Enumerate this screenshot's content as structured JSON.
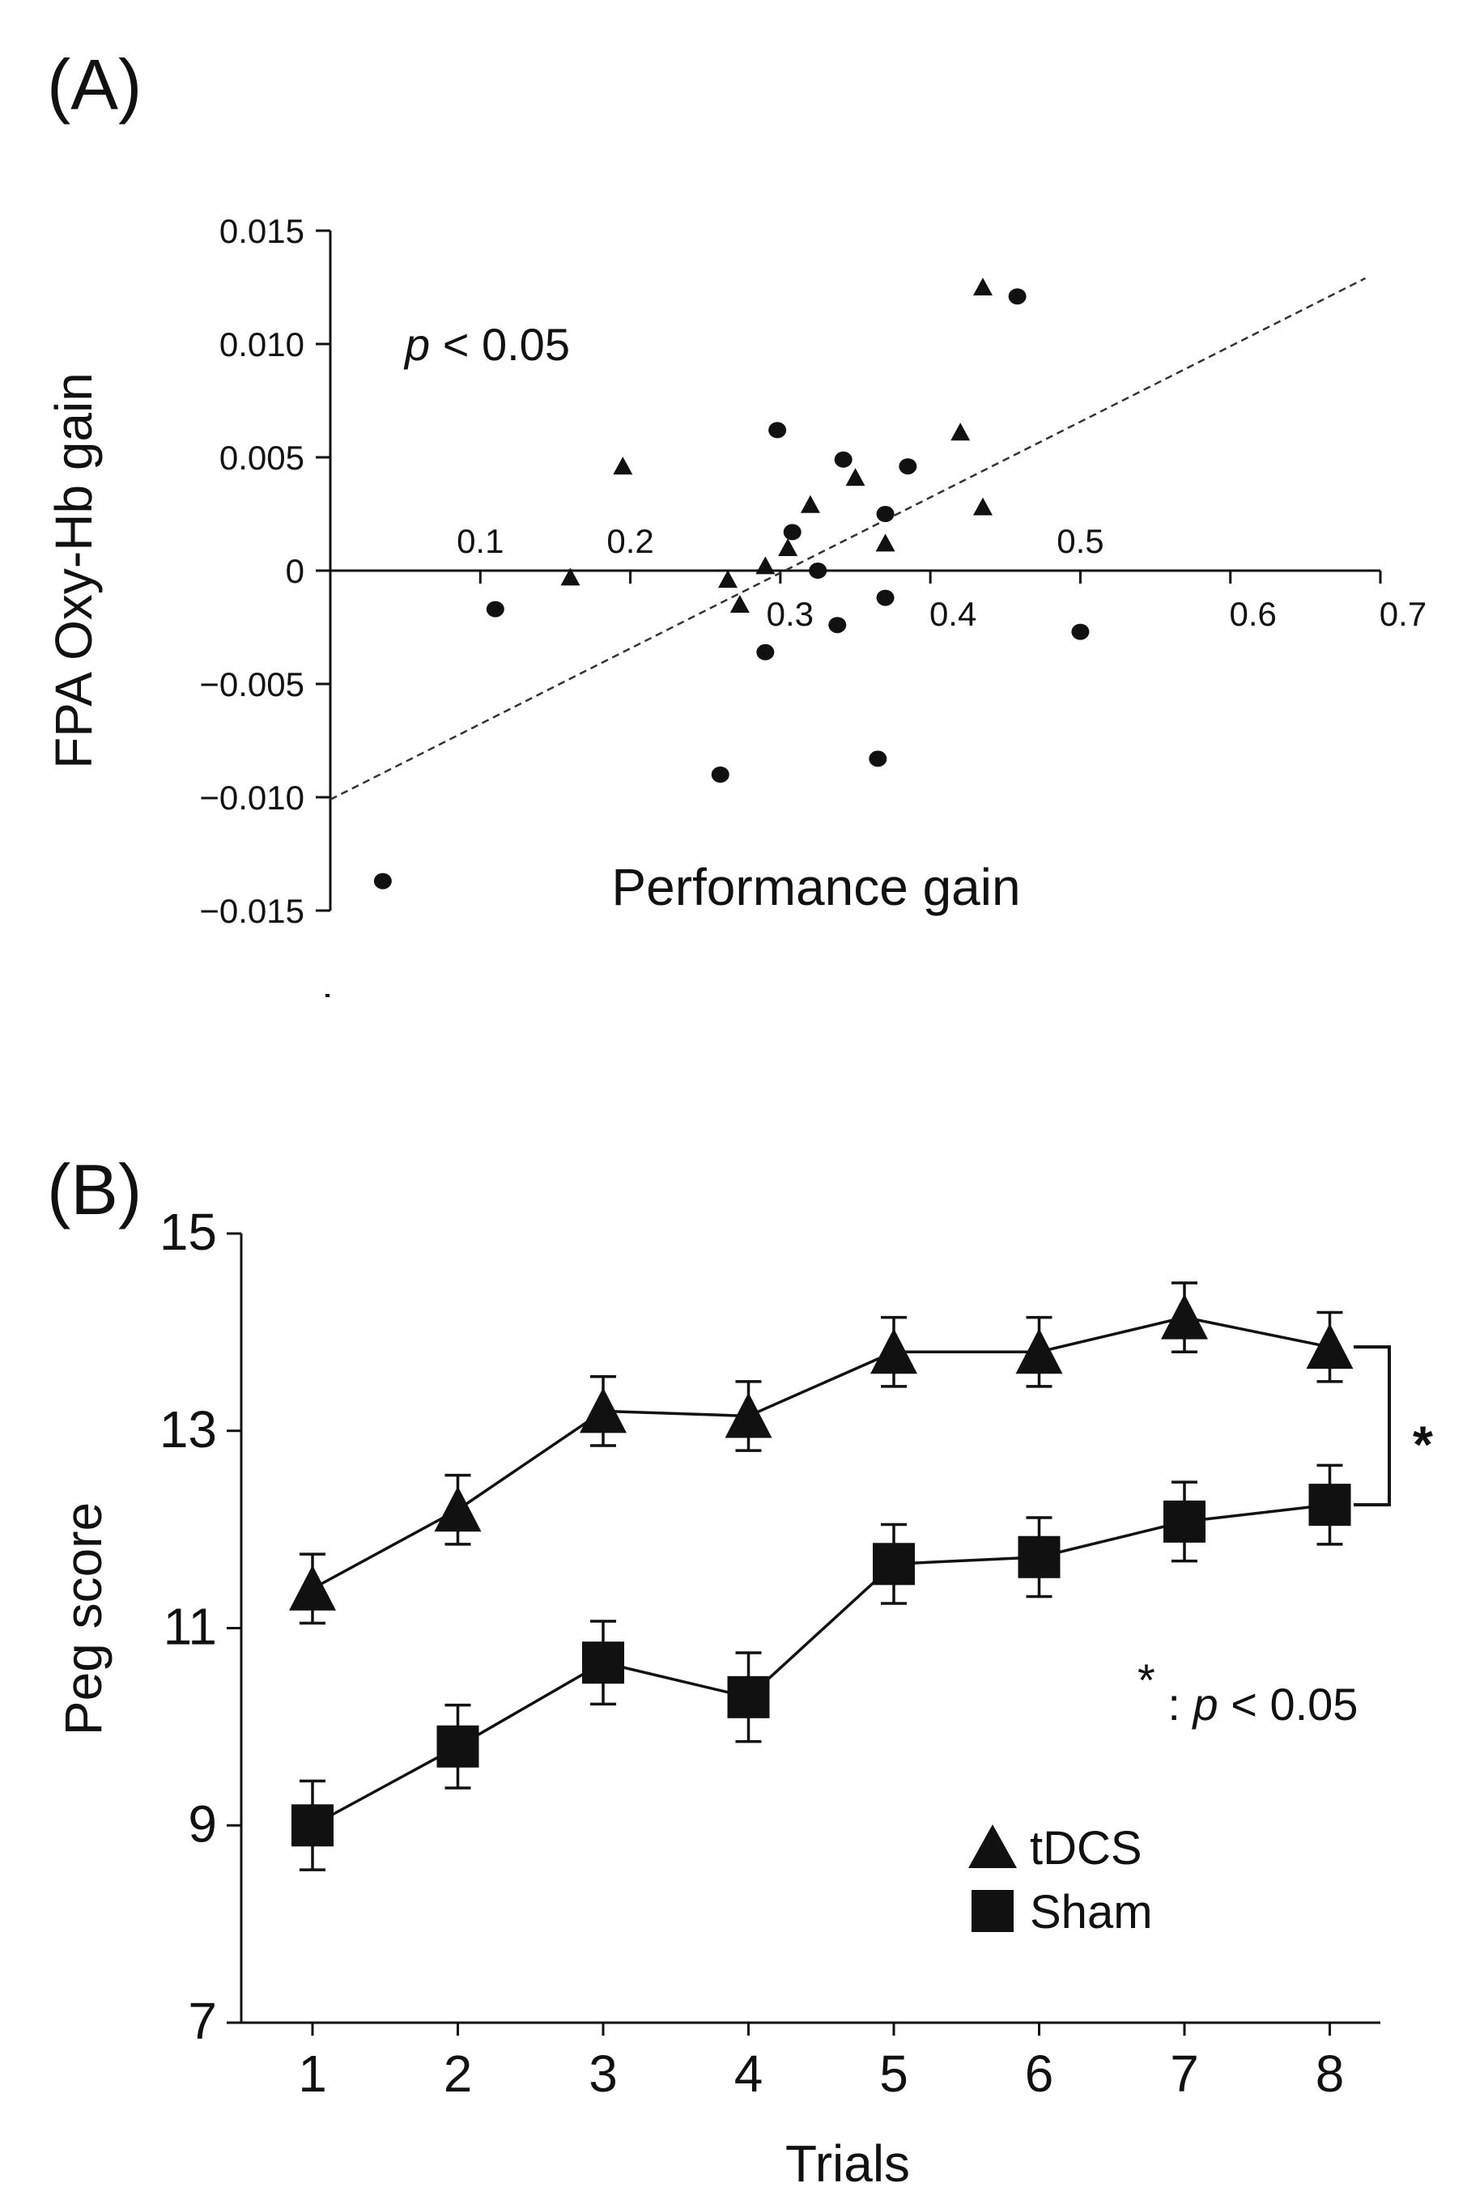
{
  "chart_data": [
    {
      "panel_label": "(A)",
      "type": "scatter",
      "xlabel": "Performance gain",
      "ylabel": "FPA Oxy-Hb gain",
      "x_ticks": [
        "0.1",
        "0.2",
        "0.3",
        "0.4",
        "0.5",
        "0.6",
        "0.7"
      ],
      "x_tick_values": [
        0.1,
        0.2,
        0.3,
        0.4,
        0.5,
        0.6,
        0.7
      ],
      "y_ticks": [
        "0.015",
        "0.010",
        "0.005",
        "0",
        "−0.005",
        "−0.010",
        "−0.015"
      ],
      "y_tick_values": [
        0.015,
        0.01,
        0.005,
        0,
        -0.005,
        -0.01,
        -0.015
      ],
      "xlim": [
        0.0,
        0.7
      ],
      "ylim": [
        -0.015,
        0.015
      ],
      "annotation": {
        "italic": "p",
        "rest": " < 0.05"
      },
      "regression_line": {
        "style": "dashed",
        "x": [
          0.0,
          0.69
        ],
        "y": [
          -0.0101,
          0.0129
        ]
      },
      "series": [
        {
          "marker": "triangle",
          "points": [
            [
              0.16,
              -0.0003
            ],
            [
              0.195,
              0.0046
            ],
            [
              0.265,
              -0.0004
            ],
            [
              0.273,
              -0.0015
            ],
            [
              0.29,
              0.0002
            ],
            [
              0.305,
              0.001
            ],
            [
              0.32,
              0.0029
            ],
            [
              0.35,
              0.0041
            ],
            [
              0.37,
              0.0012
            ],
            [
              0.42,
              0.0061
            ],
            [
              0.435,
              0.0028
            ],
            [
              0.435,
              0.0125
            ]
          ]
        },
        {
          "marker": "circle",
          "points": [
            [
              0.035,
              -0.0137
            ],
            [
              0.11,
              -0.0017
            ],
            [
              0.26,
              -0.009
            ],
            [
              0.29,
              -0.0036
            ],
            [
              0.298,
              0.0062
            ],
            [
              0.308,
              0.0017
            ],
            [
              0.325,
              0.0
            ],
            [
              0.338,
              -0.0024
            ],
            [
              0.342,
              0.0049
            ],
            [
              0.365,
              -0.0083
            ],
            [
              0.37,
              -0.0012
            ],
            [
              0.37,
              0.0025
            ],
            [
              0.385,
              0.0046
            ],
            [
              0.458,
              0.0121
            ],
            [
              0.5,
              -0.0027
            ]
          ]
        }
      ]
    },
    {
      "panel_label": "(B)",
      "type": "line",
      "xlabel": "Trials",
      "ylabel": "Peg score",
      "categories": [
        "1",
        "2",
        "3",
        "4",
        "5",
        "6",
        "7",
        "8"
      ],
      "y_ticks": [
        "15",
        "13",
        "11",
        "9",
        "7"
      ],
      "y_tick_values": [
        15,
        13,
        11,
        9,
        7
      ],
      "ylim": [
        7,
        15
      ],
      "series": [
        {
          "name": "tDCS",
          "marker": "triangle",
          "values": [
            11.4,
            12.2,
            13.2,
            13.15,
            13.8,
            13.8,
            14.15,
            13.85
          ],
          "errors": [
            0.35,
            0.35,
            0.35,
            0.35,
            0.35,
            0.35,
            0.35,
            0.35
          ]
        },
        {
          "name": "Sham",
          "marker": "square",
          "values": [
            9.0,
            9.8,
            10.65,
            10.3,
            11.65,
            11.72,
            12.08,
            12.25
          ],
          "errors": [
            0.45,
            0.42,
            0.42,
            0.45,
            0.4,
            0.4,
            0.4,
            0.4
          ]
        }
      ],
      "significance": {
        "star": "*",
        "note_star": "*",
        "note_sep": " : ",
        "note_italic": "p",
        "note_rest": " < 0.05"
      },
      "legend_position": "bottom-right"
    }
  ]
}
